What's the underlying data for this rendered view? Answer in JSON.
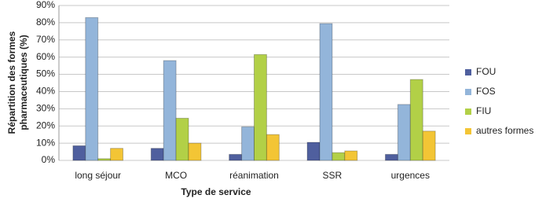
{
  "chart_data": {
    "type": "bar",
    "x_label": "Type de service",
    "y_label": [
      "Répartition des formes",
      "pharmaceutiques (%)"
    ],
    "categories": [
      "long séjour",
      "MCO",
      "réanimation",
      "SSR",
      "urgences"
    ],
    "series": [
      {
        "name": "FOU",
        "color": "#4f5f9e",
        "values": [
          8.5,
          7,
          3.5,
          10.5,
          3.5
        ]
      },
      {
        "name": "FOS",
        "color": "#93b5da",
        "values": [
          83,
          58,
          19.5,
          79.5,
          32.5
        ]
      },
      {
        "name": "FIU",
        "color": "#b2d047",
        "values": [
          1,
          24.5,
          61.5,
          4.5,
          47
        ]
      },
      {
        "name": "autres formes",
        "color": "#f3c535",
        "values": [
          7,
          10,
          15,
          5.5,
          17
        ]
      }
    ],
    "ylim": [
      0,
      90
    ],
    "yticks": [
      {
        "value": 0,
        "label": "0%"
      },
      {
        "value": 10,
        "label": "10%"
      },
      {
        "value": 20,
        "label": "20%"
      },
      {
        "value": 30,
        "label": "30%"
      },
      {
        "value": 40,
        "label": "40%"
      },
      {
        "value": 50,
        "label": "50%"
      },
      {
        "value": 60,
        "label": "60%"
      },
      {
        "value": 70,
        "label": "70%"
      },
      {
        "value": 80,
        "label": "80%"
      },
      {
        "value": 90,
        "label": "90%"
      }
    ],
    "grid": true
  }
}
